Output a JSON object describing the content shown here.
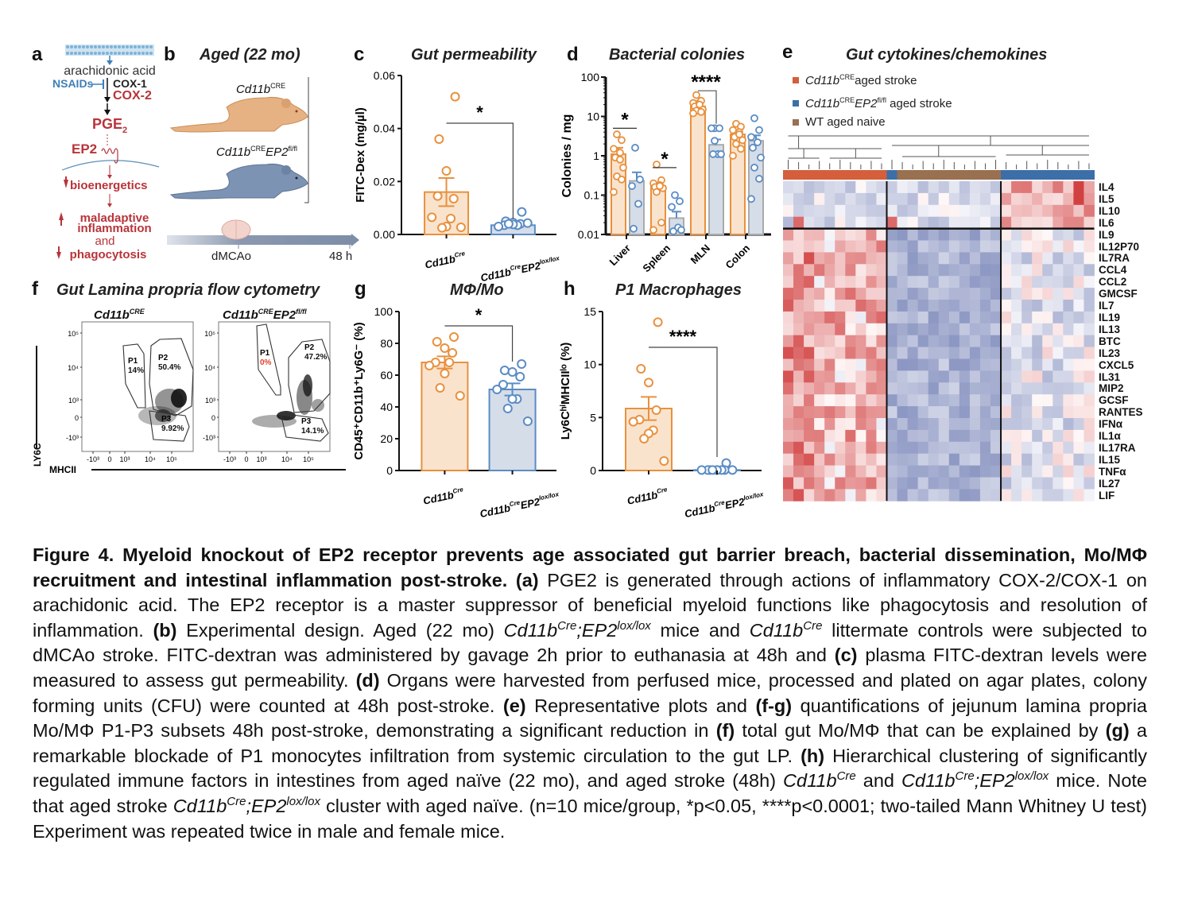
{
  "figure": {
    "colors": {
      "orange": "#e8913e",
      "orange_fill": "#f9e3cd",
      "blue": "#5b8cc4",
      "blue_fill": "#d5dde9",
      "heatmap_orange": "#d45f3a",
      "heatmap_blue": "#3c6fa8",
      "heatmap_brown": "#997050",
      "pathway_red": "#b8343a",
      "pathway_blue": "#3d7fb8"
    },
    "panel_a": {
      "label": "a",
      "membrane": "arachidonic acid",
      "inhibitor": "NSAIDs",
      "cox1": "COX-1",
      "cox2": "COX-2",
      "pge": "PGE",
      "pge_sub": "2",
      "receptor": "EP2",
      "step1": "bioenergetics",
      "step2a": "maladaptive",
      "step2b": "inflammation",
      "step2c": "and",
      "step2d": "phagocytosis"
    },
    "panel_b": {
      "label": "b",
      "title": "Aged (22 mo)",
      "mouse1_label": "Cd11b",
      "mouse1_sup": "CRE",
      "mouse2_label": "Cd11b",
      "mouse2_sup": "CRE",
      "mouse2_label2": "EP2",
      "mouse2_sup2": "fl/fl",
      "timeline_start": "dMCAo",
      "timeline_end": "48 h"
    },
    "panel_e_heatmap": {
      "label": "e",
      "title": "Gut cytokines/chemokines",
      "legend": [
        {
          "name": "Cd11b",
          "sup": "CRE",
          "rest": "aged stroke",
          "color": "#d45f3a"
        },
        {
          "name": "Cd11b",
          "sup": "CRE",
          "name2": "EP2",
          "sup2": "fl/fl",
          "rest": " aged stroke",
          "color": "#3c6fa8"
        },
        {
          "name": "",
          "sup": "",
          "rest": "WT aged naive",
          "color": "#997050"
        }
      ],
      "group_bar": [
        "o",
        "o",
        "o",
        "o",
        "o",
        "o",
        "o",
        "o",
        "o",
        "o",
        "b",
        "n",
        "n",
        "n",
        "n",
        "n",
        "n",
        "n",
        "n",
        "n",
        "n",
        "b",
        "b",
        "b",
        "b",
        "b",
        "b",
        "b",
        "b",
        "b"
      ],
      "genes": [
        "IL4",
        "IL5",
        "IL10",
        "IL6",
        "IL9",
        "IL12P70",
        "IL7RA",
        "CCL4",
        "CCL2",
        "GMCSF",
        "IL7",
        "IL19",
        "IL13",
        "BTC",
        "IL23",
        "CXCL5",
        "IL31",
        "MIP2",
        "GCSF",
        "RANTES",
        "IFNα",
        "IL1α",
        "IL17RA",
        "IL15",
        "TNFα",
        "IL27",
        "LIF"
      ]
    },
    "panel_f": {
      "label": "f",
      "title": "Gut Lamina propria flow cytometry",
      "plot1_title": "Cd11b",
      "plot1_sup": "CRE",
      "plot2_title": "Cd11b",
      "plot2_sup": "CRE",
      "plot2_title2": "EP2",
      "plot2_sup2": "fl/fl",
      "y_axis": "LY6C",
      "x_axis": "MHCII",
      "y_ticks": [
        "10⁵",
        "10⁴",
        "10³",
        "0",
        "-10³"
      ],
      "x_ticks": [
        "-10³",
        "0",
        "10³",
        "10⁴",
        "10⁵"
      ],
      "plot1_gates": [
        {
          "name": "P1",
          "pct": "14%"
        },
        {
          "name": "P2",
          "pct": "50.4%"
        },
        {
          "name": "P3",
          "pct": "9.92%"
        }
      ],
      "plot2_gates": [
        {
          "name": "P1",
          "pct": "0%"
        },
        {
          "name": "P2",
          "pct": "47.2%"
        },
        {
          "name": "P3",
          "pct": "14.1%"
        }
      ]
    }
  },
  "chart_data": [
    {
      "id": "c",
      "type": "bar",
      "label": "c",
      "title": "Gut permeability",
      "ylabel": "FITC-Dex (mg/µl)",
      "ylim": [
        0,
        0.06
      ],
      "yticks": [
        "0.00",
        "0.02",
        "0.04",
        "0.06"
      ],
      "ytick_values": [
        0,
        0.02,
        0.04,
        0.06
      ],
      "categories": [
        {
          "name": "Cd11b",
          "sup": "Cre",
          "name2": "",
          "sup2": ""
        },
        {
          "name": "Cd11b",
          "sup": "Cre",
          "name2": "EP2",
          "sup2": "lox/lox"
        }
      ],
      "means": [
        0.016,
        0.0035
      ],
      "sem": [
        0.0053,
        0.0008
      ],
      "points": [
        [
          0.052,
          0.036,
          0.024,
          0.0135,
          0.0145,
          0.0065,
          0.006,
          0.003,
          0.0025,
          0.0027
        ],
        [
          0.0085,
          0.005,
          0.0045,
          0.004,
          0.0035,
          0.003,
          0.0035,
          0.0038,
          0.004,
          0.0043
        ]
      ],
      "significance": "*"
    },
    {
      "id": "d",
      "type": "bar",
      "label": "d",
      "title": "Bacterial colonies",
      "ylabel": "Colonies / mg",
      "yscale": "log",
      "ylim": [
        0.01,
        100
      ],
      "yticks": [
        "0.01",
        "0.1",
        "1",
        "10",
        "100"
      ],
      "ytick_values": [
        0.01,
        0.1,
        1,
        10,
        100
      ],
      "categories": [
        "Liver",
        "Spleen",
        "MLN",
        "Colon"
      ],
      "series": [
        {
          "name": "Cd11b Cre",
          "means": [
            1.1,
            0.17,
            18,
            3.5
          ],
          "sem_upper": [
            1.6,
            0.21,
            25,
            4.4
          ],
          "points": [
            [
              3.5,
              2.5,
              1.5,
              1.2,
              0.9,
              0.5,
              0.3,
              0.25,
              0.12,
              0.8
            ],
            [
              0.6,
              0.24,
              0.2,
              0.18,
              0.16,
              0.15,
              0.12,
              0.02,
              0.013,
              0.17
            ],
            [
              35,
              25,
              22,
              20,
              18,
              15,
              14,
              13,
              12,
              20
            ],
            [
              6.5,
              5.5,
              4.5,
              4,
              3,
              2.5,
              2,
              1.5,
              1,
              3.5
            ]
          ]
        },
        {
          "name": "Cd11b Cre EP2 lox/lox",
          "means": [
            0.23,
            0.026,
            1.9,
            2.4
          ],
          "sem_upper": [
            0.38,
            0.038,
            2.6,
            3.3
          ],
          "points": [
            [
              1.6,
              0.25,
              0.17,
              0.06,
              0.014
            ],
            [
              0.1,
              0.07,
              0.05,
              0.015,
              0.012,
              0.013
            ],
            [
              5,
              5,
              5,
              1.1,
              1.1,
              1.1,
              2.4
            ],
            [
              9,
              4.5,
              3,
              2.2,
              1.6,
              0.9,
              0.5,
              0.26,
              0.08
            ]
          ]
        }
      ],
      "significance": [
        "*",
        "*",
        "****",
        ""
      ]
    },
    {
      "id": "g",
      "type": "bar",
      "label": "g",
      "title": "MΦ/Mo",
      "ylabel": "CD45⁺CD11b⁺Ly6G⁻ (%)",
      "ylim": [
        0,
        100
      ],
      "yticks": [
        "0",
        "20",
        "40",
        "60",
        "80",
        "100"
      ],
      "ytick_values": [
        0,
        20,
        40,
        60,
        80,
        100
      ],
      "categories": [
        {
          "name": "Cd11b",
          "sup": "Cre",
          "name2": "",
          "sup2": ""
        },
        {
          "name": "Cd11b",
          "sup": "Cre",
          "name2": "EP2",
          "sup2": "lox/lox"
        }
      ],
      "means": [
        68,
        51
      ],
      "sem": [
        3.8,
        3.8
      ],
      "points": [
        [
          84,
          81,
          77,
          74,
          68,
          66,
          68,
          61,
          52,
          47
        ],
        [
          67,
          63,
          62,
          59,
          54,
          51,
          45,
          45,
          39,
          31
        ]
      ],
      "significance": "*"
    },
    {
      "id": "h",
      "type": "bar",
      "label": "h",
      "title": "P1 Macrophages",
      "ylabel": "Ly6CʰⁱMHCIIˡᵒ (%)",
      "ylim": [
        0,
        15
      ],
      "yticks": [
        "0",
        "5",
        "10",
        "15"
      ],
      "ytick_values": [
        0,
        5,
        10,
        15
      ],
      "categories": [
        {
          "name": "Cd11b",
          "sup": "Cre",
          "name2": "",
          "sup2": ""
        },
        {
          "name": "Cd11b",
          "sup": "Cre",
          "name2": "EP2",
          "sup2": "lox/lox"
        }
      ],
      "means": [
        5.85,
        0.05
      ],
      "sem": [
        1.1,
        0.06
      ],
      "points": [
        [
          14,
          9.6,
          8.3,
          5.7,
          4.8,
          4.6,
          3.8,
          3.5,
          3.0,
          0.9
        ],
        [
          0.7,
          0.05,
          0.05,
          0.05,
          0.05,
          0.05,
          0.05,
          0.05,
          0.05,
          0.05
        ]
      ],
      "significance": "****"
    }
  ],
  "caption": {
    "title": "Figure 4. Myeloid knockout of EP2 receptor prevents age associated gut barrier breach, bacterial dissemination, Mo/MΦ recruitment and intestinal inflammation post-stroke.",
    "a_tag": "(a)",
    "a_text": " PGE2 is generated through actions of inflammatory COX-2/COX-1 on arachidonic acid. The EP2 receptor is a master suppressor of beneficial myeloid functions like phagocytosis and resolution of inflammation. ",
    "b_tag": "(b)",
    "b_text1": " Experimental design. Aged (22 mo) ",
    "gene_cd11b": "Cd11b",
    "sup_cre": "Cre",
    "gene_ep2": ";EP2",
    "sup_lox": "lox/lox",
    "b_text2": " mice and ",
    "b_text3": " littermate controls were subjected to dMCAo stroke. FITC-dextran was administered by gavage 2h prior to euthanasia at 48h and ",
    "c_tag": "(c)",
    "c_text": " plasma FITC-dextran levels were measured to assess gut permeability. ",
    "d_tag": "(d)",
    "d_text": " Organs were harvested from perfused mice, processed and plated on agar plates, colony forming units (CFU) were counted at 48h post-stroke. ",
    "e_tag": "(e)",
    "e_text": " Representative plots and ",
    "fg_tag": "(f-g)",
    "fg_text": " quantifications of jejunum lamina propria Mo/MΦ P1-P3 subsets 48h post-stroke, demonstrating a significant reduction in ",
    "f_tag": "(f)",
    "f_text": " total gut Mo/MΦ that can be explained by ",
    "g_tag": "(g)",
    "g_text": " a remarkable blockade of P1 monocytes infiltration from systemic circulation to the gut LP. ",
    "h_tag": "(h)",
    "h_text1": " Hierarchical clustering of significantly regulated immune factors in intestines from aged naïve (22 mo), and aged stroke (48h) ",
    "h_text2": " and ",
    "h_text3": " mice. Note that aged stroke ",
    "h_text4": " cluster with aged naïve. (n=10 mice/group, *p<0.05, ****p<0.0001; two-tailed Mann Whitney U test) Experiment was repeated twice in male and female mice."
  }
}
